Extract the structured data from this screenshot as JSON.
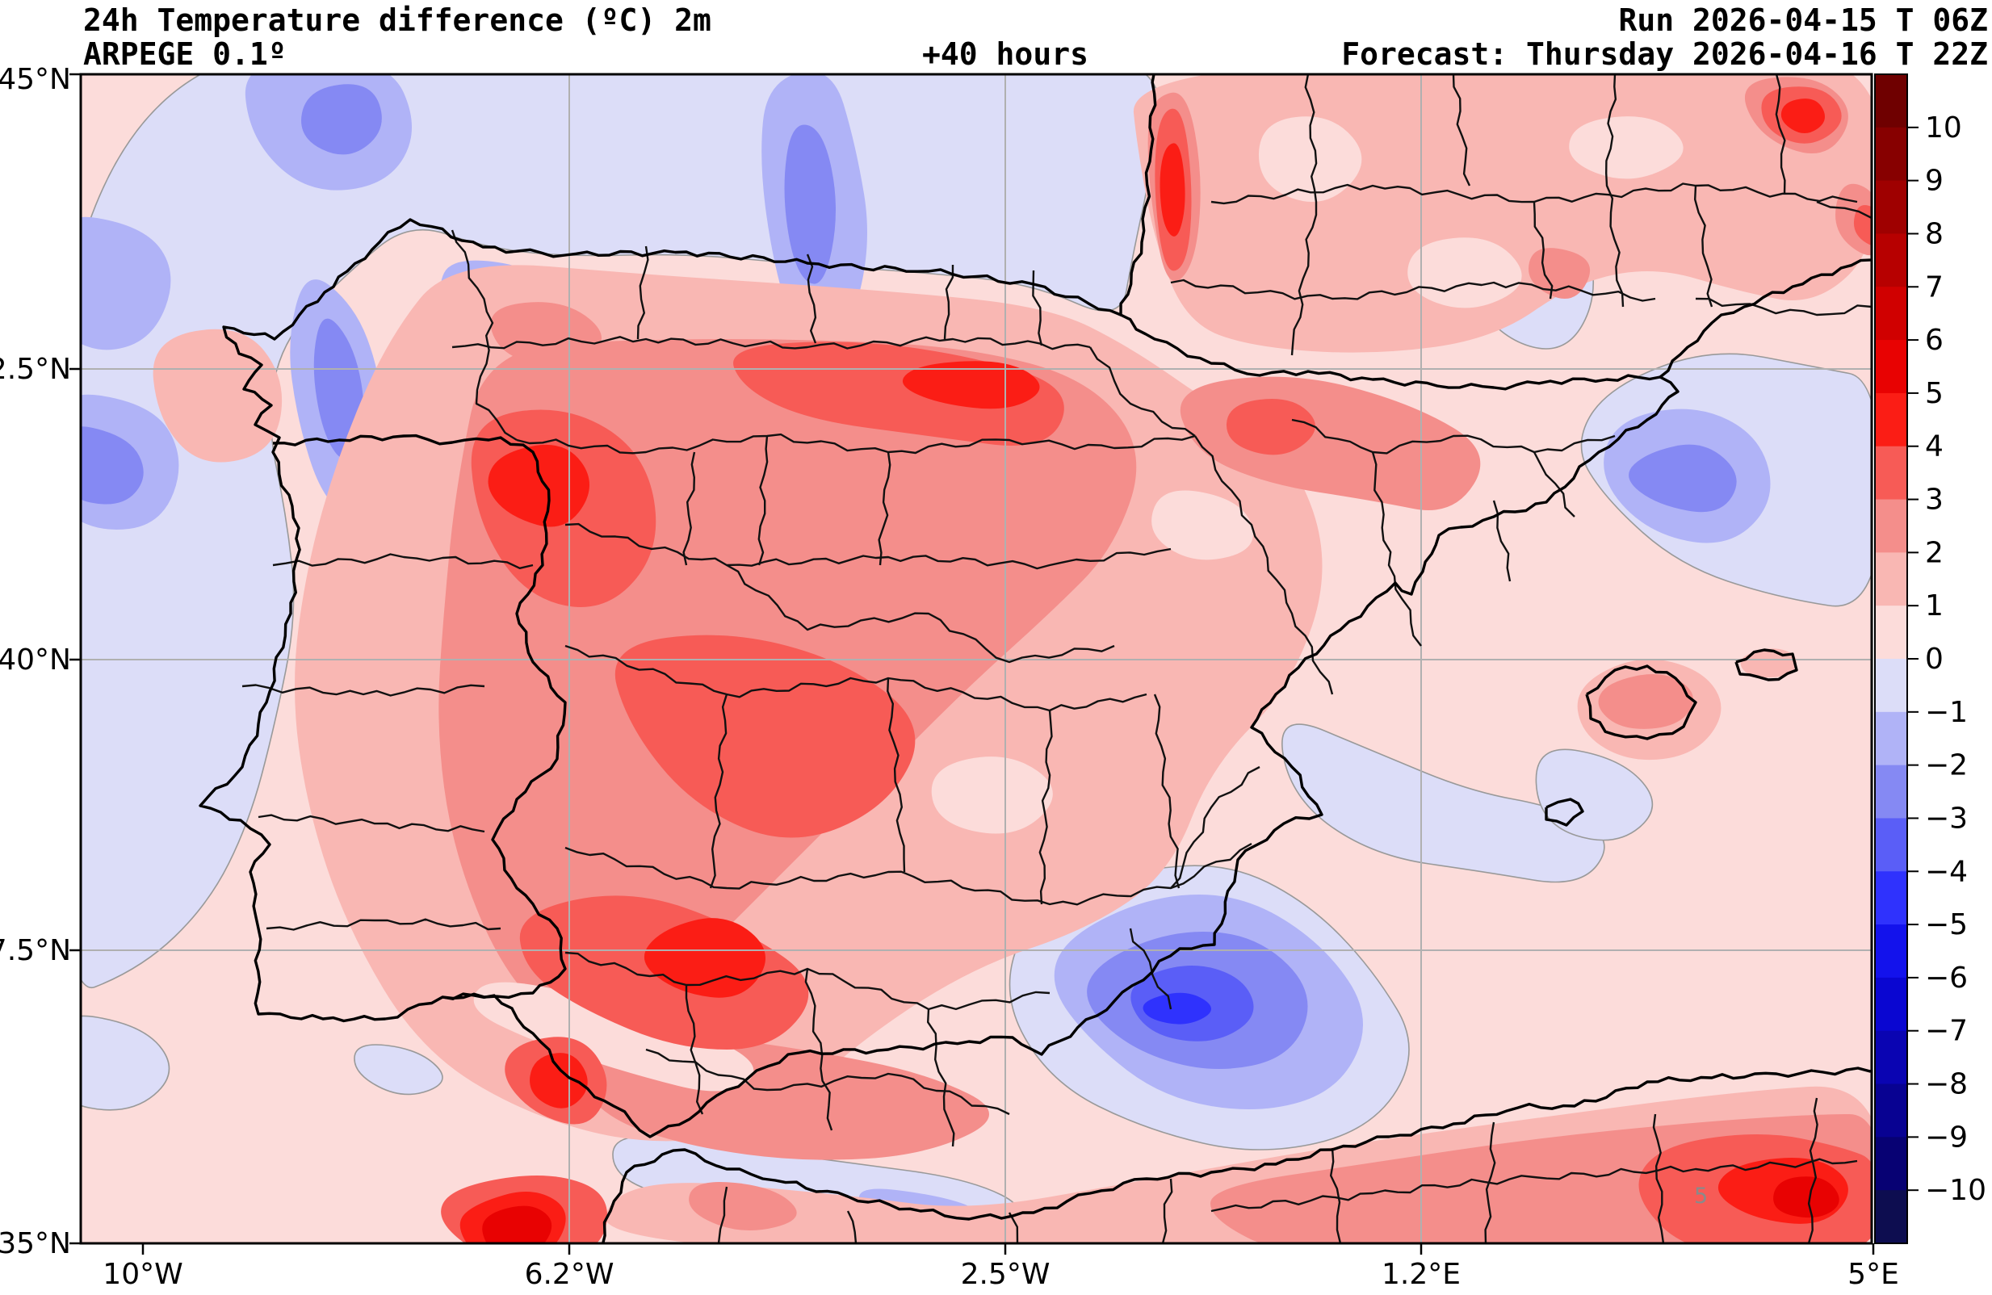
{
  "header": {
    "title_line1": "24h Temperature difference (ºC) 2m",
    "title_line2": "ARPEGE 0.1º",
    "lead_time": "+40 hours",
    "run_label": "Run 2026-04-15 T 06Z",
    "forecast_label": "Forecast: Thursday 2026-04-16 T 22Z"
  },
  "axes": {
    "x": [
      "10°W",
      "6.2°W",
      "2.5°W",
      "1.2°E",
      "5°E"
    ],
    "y": [
      "45°N",
      "42.5°N",
      "40°N",
      "37.5°N",
      "35°N"
    ]
  },
  "contour_label": "5",
  "chart_data": {
    "type": "heatmap",
    "subtype": "filled-contour-weather-map",
    "variable": "24h Temperature difference (ºC) at 2m",
    "model": "ARPEGE 0.1º",
    "run": "2026-04-15 06Z",
    "forecast_valid": "Thursday 2026-04-16 22Z",
    "lead_hours": 40,
    "region": "Iberian Peninsula, southern France, western Mediterranean, northern Africa",
    "lon_range_deg": [
      -10,
      5
    ],
    "lat_range_deg": [
      35,
      45
    ],
    "xticks": [
      "10°W",
      "6.2°W",
      "2.5°W",
      "1.2°E",
      "5°E"
    ],
    "yticks": [
      "45°N",
      "42.5°N",
      "40°N",
      "37.5°N",
      "35°N"
    ],
    "grid": true,
    "legend_position": "right-colorbar",
    "colorbar": {
      "ticks": [
        "10",
        "9",
        "8",
        "7",
        "6",
        "5",
        "4",
        "3",
        "2",
        "1",
        "0",
        "−1",
        "−2",
        "−3",
        "−4",
        "−5",
        "−6",
        "−7",
        "−8",
        "−9",
        "−10"
      ],
      "tick_values": [
        10,
        9,
        8,
        7,
        6,
        5,
        4,
        3,
        2,
        1,
        0,
        -1,
        -2,
        -3,
        -4,
        -5,
        -6,
        -7,
        -8,
        -9,
        -10
      ],
      "band_colors_top_to_bottom": [
        "#6f0000",
        "#870000",
        "#9f0000",
        "#b70000",
        "#d00000",
        "#e80202",
        "#fb1d15",
        "#f75b56",
        "#f48e8b",
        "#f9b7b3",
        "#fcdcda",
        "#dcddf8",
        "#b0b3f7",
        "#8589f3",
        "#5a5ef7",
        "#2f32fd",
        "#1312ec",
        "#0a06d1",
        "#0a04b2",
        "#080292",
        "#070173",
        "#0d0d50"
      ]
    },
    "features": [
      {
        "area": "Interior Iberian Peninsula",
        "anomaly_c": "+1 to +4",
        "note": "widespread warming, cores +4 to +5 over the northern meseta, Extremadura and Sierra Morena"
      },
      {
        "area": "Southwest Andalucia / Strait of Gibraltar / Rif",
        "anomaly_c": "+4 to +6",
        "note": "strongest warming near Cadiz and northern Morocco"
      },
      {
        "area": "Southeast Spain coast (Murcia-Alicante)",
        "anomaly_c": "-3 to -5",
        "note": "sharp coastal cold anomaly extending offshore"
      },
      {
        "area": "Atlantic off Galicia / Bay of Biscay",
        "anomaly_c": "-1 to -3",
        "note": "cool maritime sector, patches of -2/-3"
      },
      {
        "area": "Catalonia offshore Mediterranean",
        "anomaly_c": "-1 to -3",
        "note": "cold pool east of Barcelona coast"
      },
      {
        "area": "SW France Landes coast",
        "anomaly_c": "+3 to +5",
        "note": "narrow meridional warm band"
      },
      {
        "area": "Northern Algeria",
        "anomaly_c": "+2 to +6",
        "note": "warm band, brightest +5 core near 5°E"
      },
      {
        "area": "Balearic Islands",
        "anomaly_c": "+1 to +3",
        "note": "warm patch over Mallorca"
      }
    ]
  }
}
